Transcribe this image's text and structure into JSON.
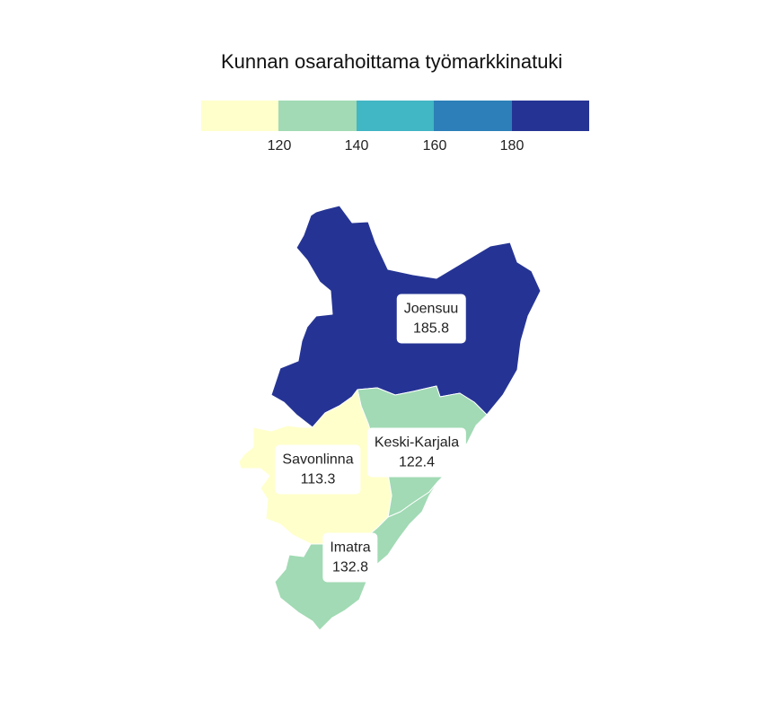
{
  "legend": {
    "title": "Kunnan osarahoittama työmarkkinatuki",
    "colors": [
      "#ffffcc",
      "#a1dab4",
      "#41b6c4",
      "#2c7fb8",
      "#253494"
    ],
    "breaks": [
      120,
      140,
      160,
      180
    ],
    "break_labels": [
      "120",
      "140",
      "160",
      "180"
    ]
  },
  "regions": [
    {
      "name": "Joensuu",
      "value": 185.8,
      "value_label": "185.8",
      "color": "#253494"
    },
    {
      "name": "Keski-Karjala",
      "value": 122.4,
      "value_label": "122.4",
      "color": "#a1dab4"
    },
    {
      "name": "Savonlinna",
      "value": 113.3,
      "value_label": "113.3",
      "color": "#ffffcc"
    },
    {
      "name": "Imatra",
      "value": 132.8,
      "value_label": "132.8",
      "color": "#a1dab4"
    }
  ]
}
